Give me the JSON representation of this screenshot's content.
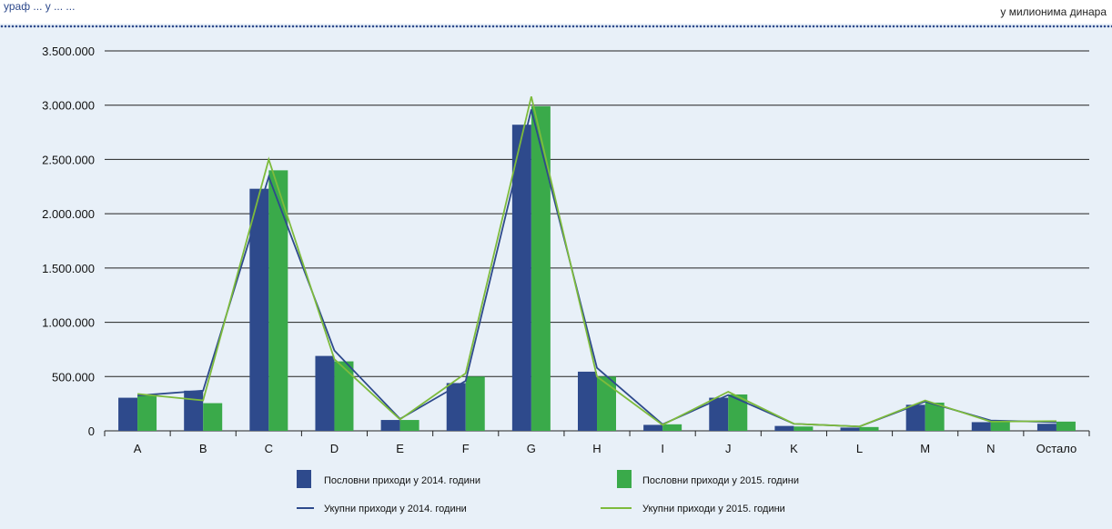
{
  "header": {
    "title_fragment": "ураф ... у ... ...",
    "unit": "у милионима динара"
  },
  "colors": {
    "bar2014": "#2e4a8c",
    "bar2015": "#3aaa4a",
    "line2014": "#2e4a8c",
    "line2015": "#7dbb3c",
    "grid": "#222222",
    "background": "#e8f0f8"
  },
  "chart_data": {
    "type": "bar",
    "categories": [
      "A",
      "B",
      "C",
      "D",
      "E",
      "F",
      "G",
      "H",
      "I",
      "J",
      "K",
      "L",
      "M",
      "N",
      "Остало"
    ],
    "y_ticks": [
      "0",
      "500.000",
      "1.000.000",
      "1.500.000",
      "2.000.000",
      "2.500.000",
      "3.000.000",
      "3.500.000"
    ],
    "ylim": [
      0,
      3500000
    ],
    "grid": true,
    "legend_position": "bottom",
    "series": [
      {
        "name": "Пословни приходи у 2014. години",
        "kind": "bar",
        "values": [
          305000,
          370000,
          2230000,
          690000,
          100000,
          440000,
          2820000,
          545000,
          55000,
          305000,
          45000,
          30000,
          240000,
          80000,
          65000
        ]
      },
      {
        "name": "Пословни приходи у  2015. години",
        "kind": "bar",
        "values": [
          330000,
          255000,
          2400000,
          640000,
          100000,
          500000,
          2990000,
          500000,
          60000,
          335000,
          40000,
          35000,
          260000,
          80000,
          85000
        ]
      },
      {
        "name": "Укупни приходи у 2014. години",
        "kind": "line",
        "values": [
          325000,
          370000,
          2340000,
          740000,
          110000,
          460000,
          2960000,
          580000,
          60000,
          330000,
          65000,
          40000,
          270000,
          95000,
          80000
        ]
      },
      {
        "name": "Укупни приходи у 2015. години",
        "kind": "line",
        "values": [
          340000,
          280000,
          2500000,
          660000,
          105000,
          530000,
          3080000,
          500000,
          55000,
          360000,
          65000,
          40000,
          280000,
          85000,
          90000
        ]
      }
    ]
  }
}
